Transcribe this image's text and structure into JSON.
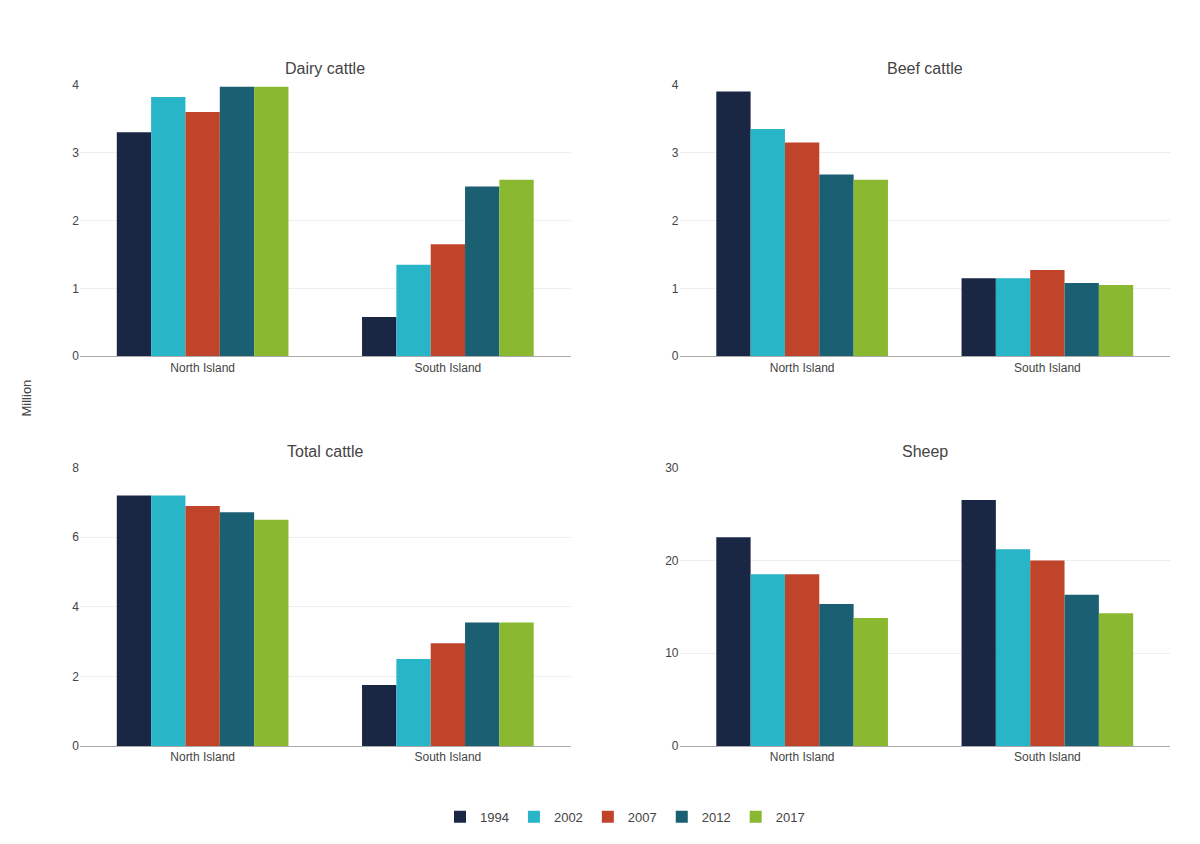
{
  "chart_data": [
    {
      "type": "bar",
      "title": "Dairy cattle",
      "ylabel": "Million",
      "categories": [
        "North Island",
        "South Island"
      ],
      "series": [
        {
          "name": "1994",
          "color": "#1a2744",
          "values": [
            3.3,
            0.58
          ]
        },
        {
          "name": "2002",
          "color": "#29b5c8",
          "values": [
            3.82,
            1.35
          ]
        },
        {
          "name": "2007",
          "color": "#c0442a",
          "values": [
            3.6,
            1.65
          ]
        },
        {
          "name": "2012",
          "color": "#1b5f72",
          "values": [
            3.97,
            2.5
          ]
        },
        {
          "name": "2017",
          "color": "#8ab830",
          "values": [
            3.97,
            2.6
          ]
        }
      ],
      "ylim": [
        0,
        4
      ],
      "yticks": [
        0,
        1,
        2,
        3,
        4
      ],
      "grid": true,
      "legend": "bottom"
    },
    {
      "type": "bar",
      "title": "Beef cattle",
      "categories": [
        "North Island",
        "South Island"
      ],
      "series": [
        {
          "name": "1994",
          "color": "#1a2744",
          "values": [
            3.9,
            1.15
          ]
        },
        {
          "name": "2002",
          "color": "#29b5c8",
          "values": [
            3.35,
            1.15
          ]
        },
        {
          "name": "2007",
          "color": "#c0442a",
          "values": [
            3.15,
            1.27
          ]
        },
        {
          "name": "2012",
          "color": "#1b5f72",
          "values": [
            2.68,
            1.08
          ]
        },
        {
          "name": "2017",
          "color": "#8ab830",
          "values": [
            2.6,
            1.05
          ]
        }
      ],
      "ylim": [
        0,
        4
      ],
      "yticks": [
        0,
        1,
        2,
        3,
        4
      ],
      "grid": true,
      "legend": "bottom"
    },
    {
      "type": "bar",
      "title": "Total cattle",
      "categories": [
        "North Island",
        "South Island"
      ],
      "series": [
        {
          "name": "1994",
          "color": "#1a2744",
          "values": [
            7.2,
            1.75
          ]
        },
        {
          "name": "2002",
          "color": "#29b5c8",
          "values": [
            7.2,
            2.5
          ]
        },
        {
          "name": "2007",
          "color": "#c0442a",
          "values": [
            6.9,
            2.95
          ]
        },
        {
          "name": "2012",
          "color": "#1b5f72",
          "values": [
            6.72,
            3.55
          ]
        },
        {
          "name": "2017",
          "color": "#8ab830",
          "values": [
            6.5,
            3.55
          ]
        }
      ],
      "ylim": [
        0,
        8
      ],
      "yticks": [
        0,
        2,
        4,
        6,
        8
      ],
      "grid": true,
      "legend": "bottom"
    },
    {
      "type": "bar",
      "title": "Sheep",
      "categories": [
        "North Island",
        "South Island"
      ],
      "series": [
        {
          "name": "1994",
          "color": "#1a2744",
          "values": [
            22.5,
            26.5
          ]
        },
        {
          "name": "2002",
          "color": "#29b5c8",
          "values": [
            18.5,
            21.2
          ]
        },
        {
          "name": "2007",
          "color": "#c0442a",
          "values": [
            18.5,
            20.0
          ]
        },
        {
          "name": "2012",
          "color": "#1b5f72",
          "values": [
            15.3,
            16.3
          ]
        },
        {
          "name": "2017",
          "color": "#8ab830",
          "values": [
            13.8,
            14.3
          ]
        }
      ],
      "ylim": [
        0,
        30
      ],
      "yticks": [
        0,
        10,
        20,
        30
      ],
      "grid": true,
      "legend": "bottom"
    }
  ]
}
